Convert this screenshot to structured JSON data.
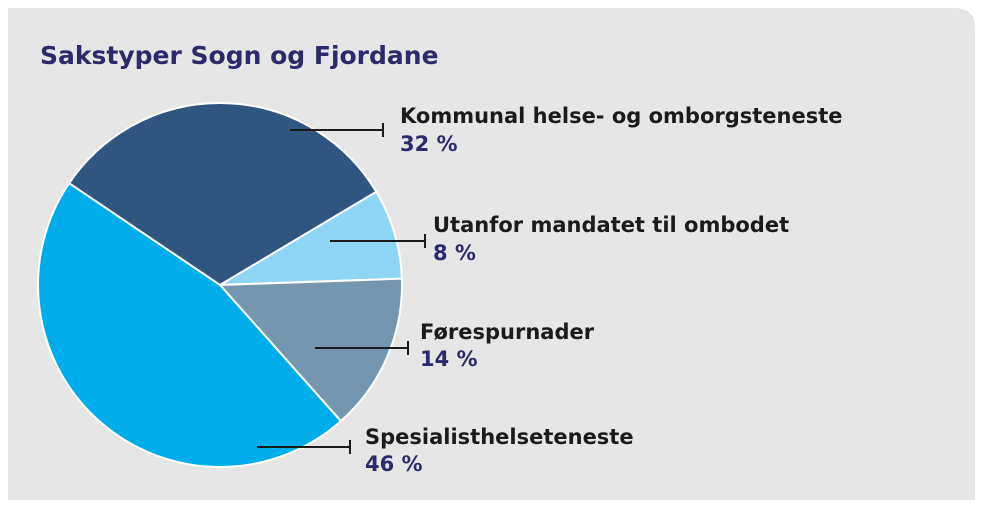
{
  "chart_data": {
    "type": "pie",
    "title": "Sakstyper Sogn og Fjordane",
    "categories": [
      "Kommunal helse- og omborgsteneste",
      "Utanfor mandatet til ombodet",
      "Førespurnader",
      "Spesialisthelseteneste"
    ],
    "values": [
      32,
      8,
      14,
      46
    ],
    "value_labels": [
      "32 %",
      "8 %",
      "14 %",
      "46 %"
    ],
    "colors": [
      "#2e5680",
      "#8fd5f6",
      "#7496b0",
      "#00adeb"
    ]
  }
}
